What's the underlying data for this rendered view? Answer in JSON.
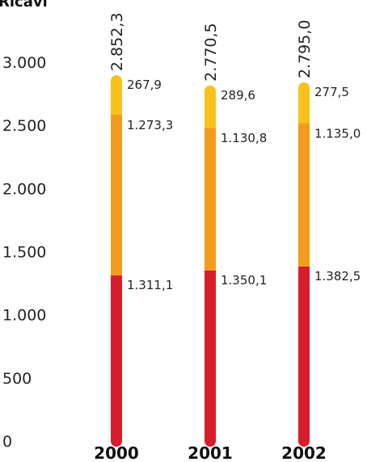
{
  "chart_data": {
    "type": "bar",
    "stacked": true,
    "title": "Ricavi",
    "categories": [
      "2000",
      "2001",
      "2002"
    ],
    "series": [
      {
        "values": [
          1311.1,
          1350.1,
          1382.5
        ],
        "labels": [
          "1.311,1",
          "1.350,1",
          "1.382,5"
        ],
        "color": "#d91c2b"
      },
      {
        "values": [
          1273.3,
          1130.8,
          1135.0
        ],
        "labels": [
          "1.273,3",
          "1.130,8",
          "1.135,0"
        ],
        "color": "#f29c1f"
      },
      {
        "values": [
          267.9,
          289.6,
          277.5
        ],
        "labels": [
          "267,9",
          "289,6",
          "277,5"
        ],
        "color": "#f9c21a"
      }
    ],
    "totals": [
      2852.3,
      2770.5,
      2795.0
    ],
    "total_labels": [
      "2.852,3",
      "2.770,5",
      "2.795,0"
    ],
    "yticks": [
      0,
      500,
      1000,
      1500,
      2000,
      2500,
      3000
    ],
    "ytick_labels": [
      "0",
      "500",
      "1.000",
      "1.500",
      "2.000",
      "2.500",
      "3.000"
    ],
    "ylim": [
      0,
      3000
    ],
    "grid": false,
    "legend": "none"
  }
}
